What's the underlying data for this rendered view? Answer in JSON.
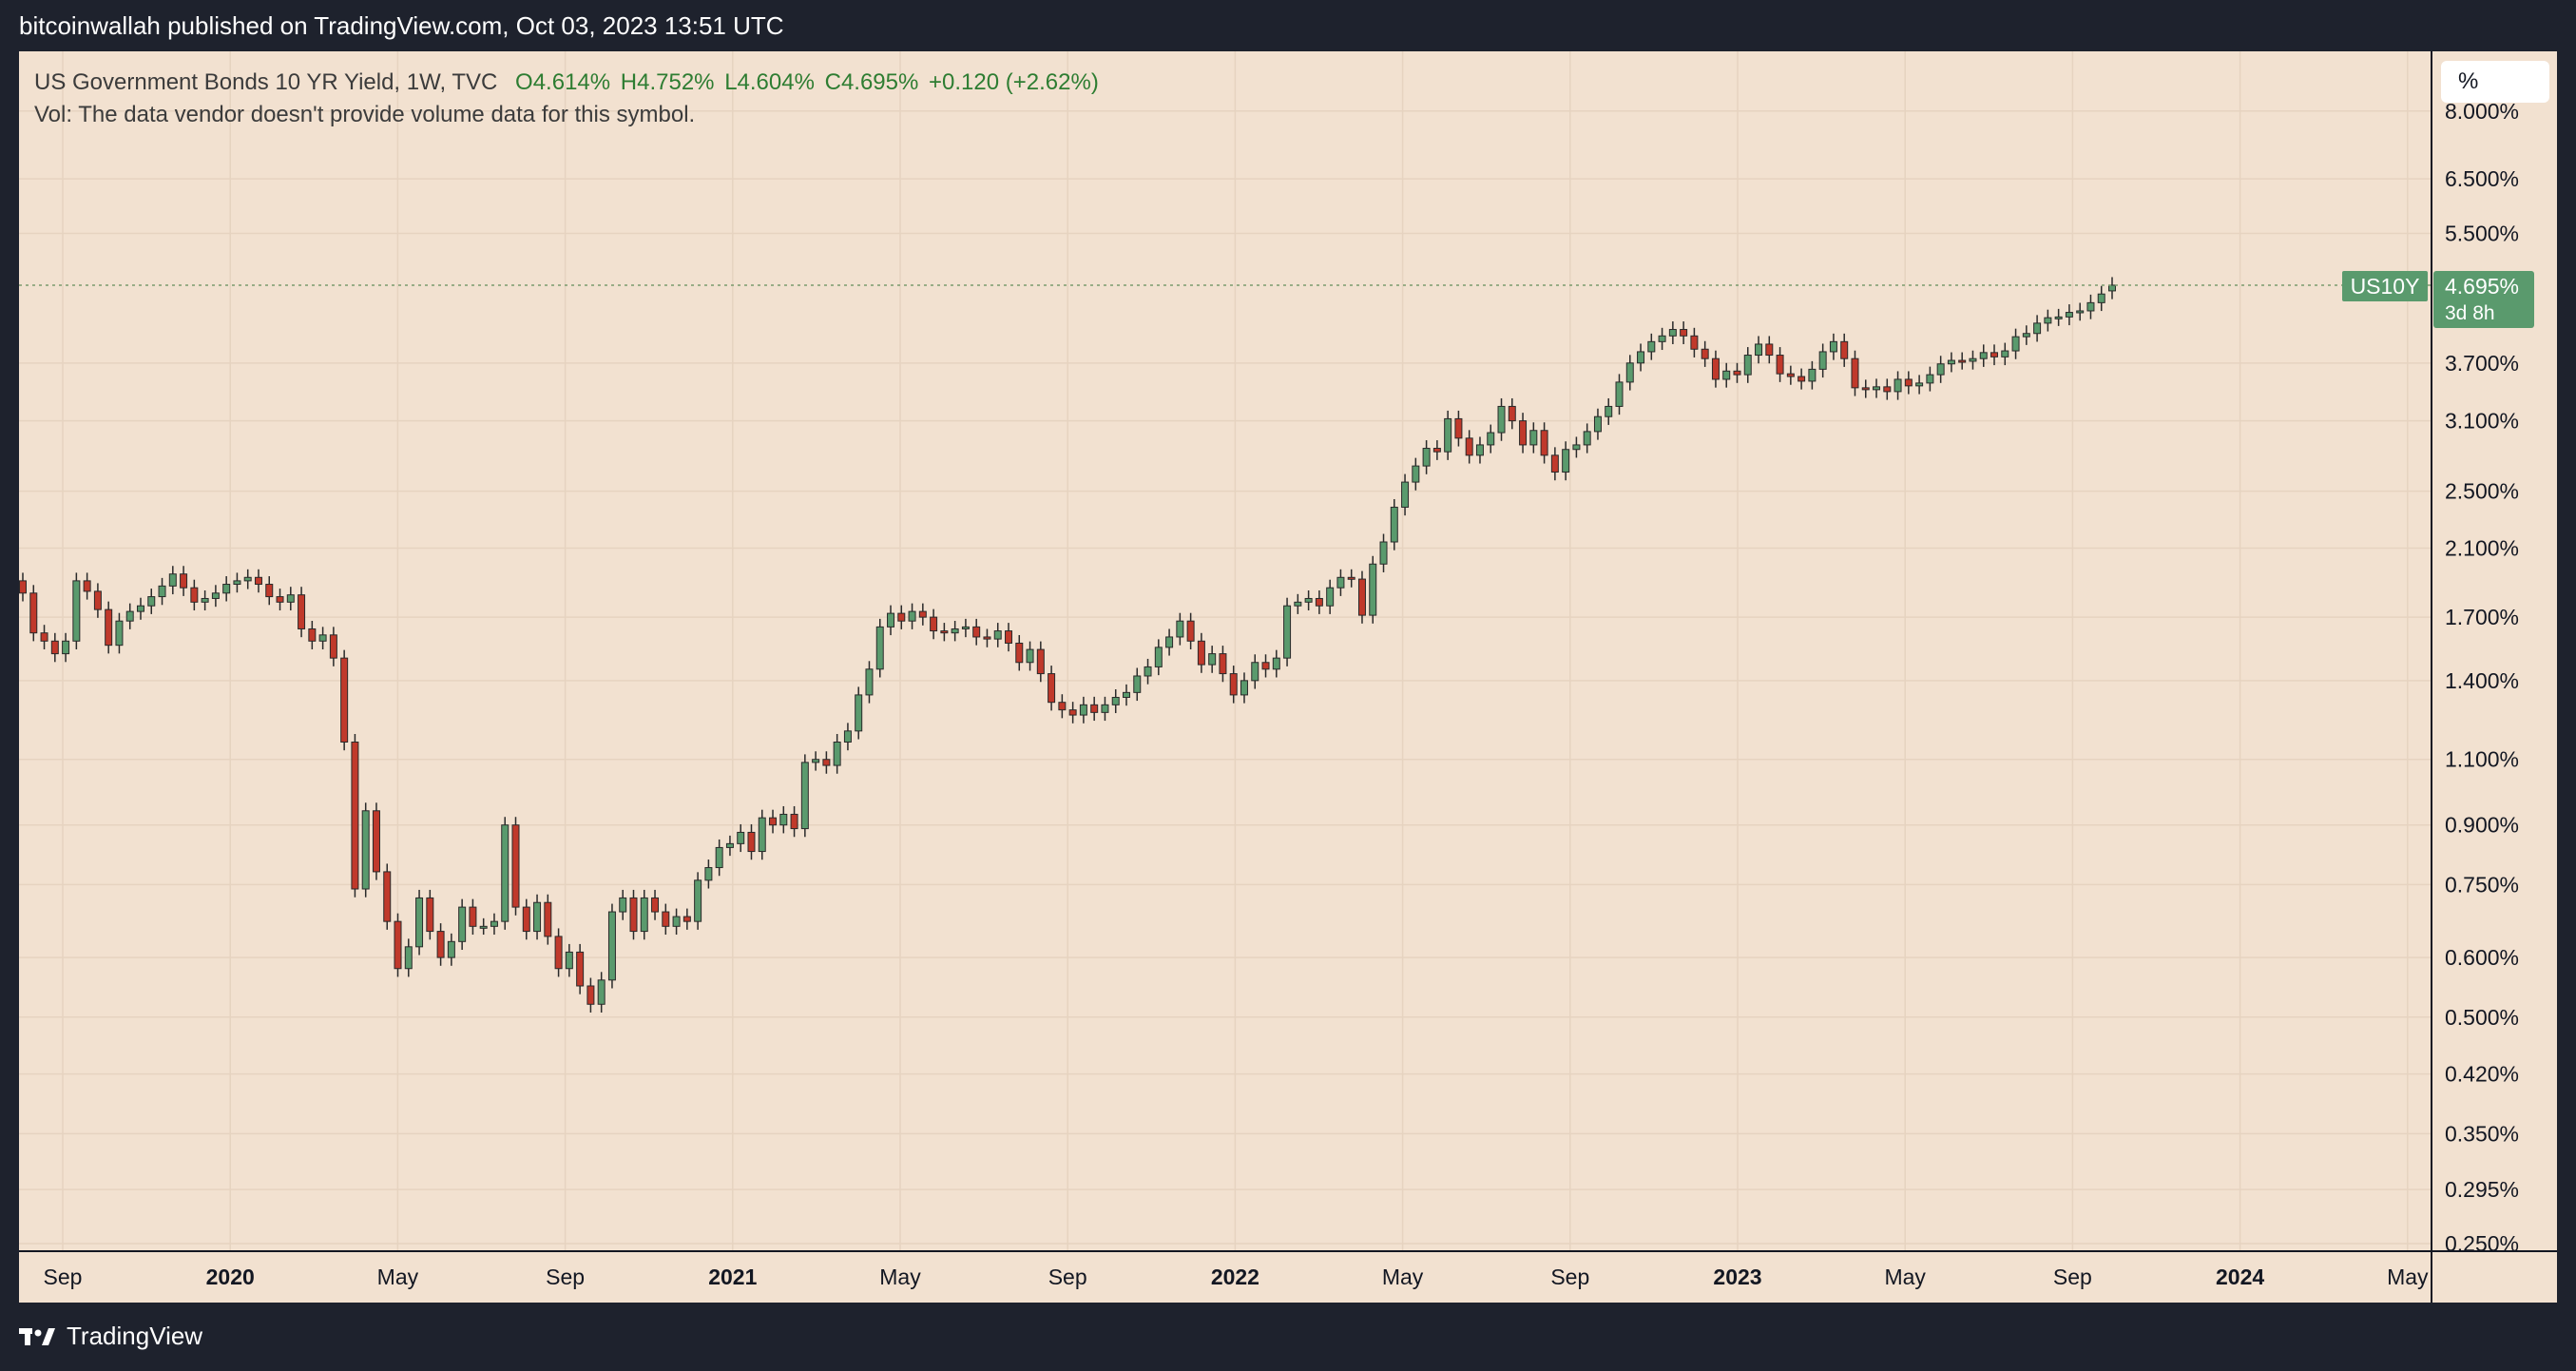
{
  "header": {
    "published_by": "bitcoinwallah published on TradingView.com, Oct 03, 2023 13:51 UTC"
  },
  "legend": {
    "symbol": "US Government Bonds 10 YR Yield, 1W, TVC",
    "open": "O4.614%",
    "high": "H4.752%",
    "low": "L4.604%",
    "close": "C4.695%",
    "change": "+0.120 (+2.62%)",
    "volume_note": "Vol: The data vendor doesn't provide volume data for this symbol."
  },
  "scale_button": {
    "label": "%"
  },
  "price_tag": {
    "symbol": "US10Y",
    "value": "4.695%",
    "countdown": "3d 8h"
  },
  "footer": {
    "brand": "TradingView"
  },
  "colors": {
    "background": "#f2e1d0",
    "up": "#5a9a6d",
    "down": "#c0392b",
    "frame": "#1e222d",
    "tag": "#5a9a6d"
  },
  "chart_data": {
    "type": "candlestick",
    "y_scale": "log",
    "ylim": [
      0.25,
      8.4
    ],
    "y_ticks": [
      "8.000%",
      "6.500%",
      "5.500%",
      "3.700%",
      "3.100%",
      "2.500%",
      "2.100%",
      "1.700%",
      "1.400%",
      "1.100%",
      "0.900%",
      "0.750%",
      "0.600%",
      "0.500%",
      "0.420%",
      "0.350%",
      "0.295%",
      "0.250%"
    ],
    "x_ticks": [
      "Sep",
      "2020",
      "May",
      "Sep",
      "2021",
      "May",
      "Sep",
      "2022",
      "May",
      "Sep",
      "2023",
      "May",
      "Sep",
      "2024",
      "May"
    ],
    "x_ticks_bold": [
      false,
      true,
      false,
      false,
      true,
      false,
      false,
      true,
      false,
      false,
      true,
      false,
      false,
      true,
      false
    ],
    "last_price": 4.695,
    "candles_close": [
      1.83,
      1.62,
      1.58,
      1.52,
      1.58,
      1.9,
      1.84,
      1.74,
      1.56,
      1.68,
      1.73,
      1.76,
      1.81,
      1.87,
      1.94,
      1.86,
      1.78,
      1.8,
      1.83,
      1.88,
      1.9,
      1.92,
      1.88,
      1.81,
      1.78,
      1.82,
      1.64,
      1.58,
      1.61,
      1.5,
      1.16,
      0.74,
      0.94,
      0.78,
      0.67,
      0.58,
      0.62,
      0.72,
      0.65,
      0.6,
      0.63,
      0.7,
      0.66,
      0.66,
      0.67,
      0.9,
      0.7,
      0.65,
      0.71,
      0.64,
      0.58,
      0.61,
      0.55,
      0.52,
      0.56,
      0.69,
      0.72,
      0.65,
      0.72,
      0.69,
      0.66,
      0.68,
      0.67,
      0.76,
      0.79,
      0.84,
      0.85,
      0.88,
      0.83,
      0.92,
      0.9,
      0.93,
      0.89,
      1.09,
      1.1,
      1.08,
      1.16,
      1.2,
      1.34,
      1.45,
      1.65,
      1.72,
      1.68,
      1.73,
      1.7,
      1.63,
      1.62,
      1.64,
      1.65,
      1.6,
      1.59,
      1.63,
      1.57,
      1.48,
      1.54,
      1.43,
      1.31,
      1.28,
      1.26,
      1.3,
      1.27,
      1.3,
      1.33,
      1.35,
      1.42,
      1.46,
      1.55,
      1.6,
      1.68,
      1.58,
      1.47,
      1.52,
      1.43,
      1.34,
      1.4,
      1.48,
      1.45,
      1.5,
      1.76,
      1.78,
      1.8,
      1.76,
      1.86,
      1.92,
      1.91,
      1.71,
      2.0,
      2.14,
      2.38,
      2.57,
      2.7,
      2.85,
      2.82,
      3.12,
      2.94,
      2.79,
      2.88,
      2.99,
      3.24,
      3.1,
      2.88,
      3.01,
      2.79,
      2.65,
      2.84,
      2.88,
      3.0,
      3.14,
      3.24,
      3.49,
      3.7,
      3.83,
      3.95,
      4.02,
      4.1,
      4.02,
      3.86,
      3.75,
      3.52,
      3.61,
      3.57,
      3.79,
      3.92,
      3.79,
      3.58,
      3.55,
      3.5,
      3.63,
      3.83,
      3.95,
      3.75,
      3.43,
      3.41,
      3.44,
      3.39,
      3.52,
      3.45,
      3.48,
      3.57,
      3.69,
      3.73,
      3.72,
      3.75,
      3.82,
      3.77,
      3.84,
      4.01,
      4.05,
      4.18,
      4.25,
      4.26,
      4.32,
      4.34,
      4.45,
      4.57,
      4.695
    ],
    "candles_open": [
      1.9,
      1.83,
      1.62,
      1.58,
      1.52,
      1.58,
      1.9,
      1.84,
      1.74,
      1.56,
      1.68,
      1.73,
      1.76,
      1.81,
      1.87,
      1.94,
      1.86,
      1.78,
      1.8,
      1.83,
      1.88,
      1.9,
      1.92,
      1.88,
      1.81,
      1.78,
      1.82,
      1.64,
      1.58,
      1.61,
      1.5,
      1.16,
      0.74,
      0.94,
      0.78,
      0.67,
      0.58,
      0.62,
      0.72,
      0.65,
      0.6,
      0.63,
      0.7,
      0.66,
      0.66,
      0.67,
      0.9,
      0.7,
      0.65,
      0.71,
      0.64,
      0.58,
      0.61,
      0.55,
      0.52,
      0.56,
      0.69,
      0.72,
      0.65,
      0.72,
      0.69,
      0.66,
      0.68,
      0.67,
      0.76,
      0.79,
      0.84,
      0.85,
      0.88,
      0.83,
      0.92,
      0.9,
      0.93,
      0.89,
      1.09,
      1.1,
      1.08,
      1.16,
      1.2,
      1.34,
      1.45,
      1.65,
      1.72,
      1.68,
      1.73,
      1.7,
      1.63,
      1.62,
      1.64,
      1.65,
      1.6,
      1.59,
      1.63,
      1.57,
      1.48,
      1.54,
      1.43,
      1.31,
      1.28,
      1.26,
      1.3,
      1.27,
      1.3,
      1.33,
      1.35,
      1.42,
      1.46,
      1.55,
      1.6,
      1.68,
      1.58,
      1.47,
      1.52,
      1.43,
      1.34,
      1.4,
      1.48,
      1.45,
      1.5,
      1.76,
      1.78,
      1.8,
      1.76,
      1.86,
      1.92,
      1.91,
      1.71,
      2.0,
      2.14,
      2.38,
      2.57,
      2.7,
      2.85,
      2.82,
      3.12,
      2.94,
      2.79,
      2.88,
      2.99,
      3.24,
      3.1,
      2.88,
      3.01,
      2.79,
      2.65,
      2.84,
      2.88,
      3.0,
      3.14,
      3.24,
      3.49,
      3.7,
      3.83,
      3.95,
      4.02,
      4.1,
      4.02,
      3.86,
      3.75,
      3.52,
      3.61,
      3.57,
      3.79,
      3.92,
      3.79,
      3.58,
      3.55,
      3.5,
      3.63,
      3.83,
      3.95,
      3.75,
      3.43,
      3.41,
      3.44,
      3.39,
      3.52,
      3.45,
      3.48,
      3.57,
      3.69,
      3.73,
      3.72,
      3.75,
      3.82,
      3.77,
      3.84,
      4.01,
      4.05,
      4.18,
      4.25,
      4.26,
      4.32,
      4.34,
      4.45,
      4.614
    ]
  }
}
